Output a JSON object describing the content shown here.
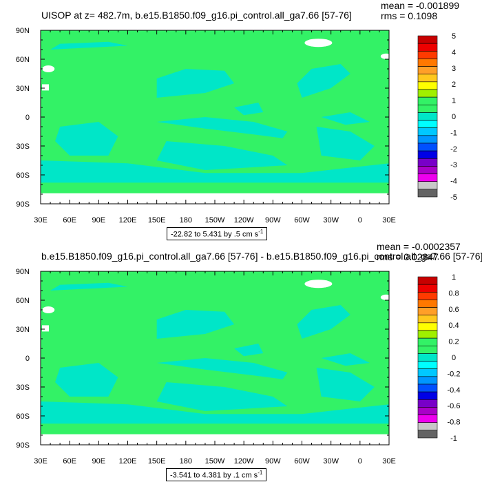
{
  "colors": {
    "land": "#ffffff",
    "ocean_pos": "#33f266",
    "ocean_neg": "#00e6c8",
    "axis": "#000000"
  },
  "chart_data": [
    {
      "type": "heatmap",
      "title": "UISOP at z= 482.7m, b.e15.B1850.f09_g16.pi_control.all_ga7.66 [57-76]",
      "stats": {
        "mean": "mean = -0.001899",
        "rms": "rms = 0.1098"
      },
      "x_ticks": [
        "30E",
        "60E",
        "90E",
        "120E",
        "150E",
        "180",
        "150W",
        "120W",
        "90W",
        "60W",
        "30W",
        "0",
        "30E"
      ],
      "y_ticks": [
        "90N",
        "60N",
        "30N",
        "0",
        "30S",
        "60S",
        "90S"
      ],
      "colorbar": {
        "labels": [
          "5",
          "4",
          "3",
          "2",
          "1",
          "0",
          "-1",
          "-2",
          "-3",
          "-4",
          "-5"
        ],
        "colors": [
          "#c80000",
          "#ee0000",
          "#ff3a00",
          "#ff7800",
          "#ff9f28",
          "#ffc81e",
          "#ffff00",
          "#a0f000",
          "#33f266",
          "#33f266",
          "#00e6c8",
          "#00ffff",
          "#00c8ff",
          "#0096ff",
          "#0050ff",
          "#0000e6",
          "#7800c8",
          "#aa00c8",
          "#ee00ee",
          "#c8c8c8",
          "#646464"
        ]
      },
      "range_label": "-22.82 to 5.431 by .5 cm s",
      "range_unit_sup": "-1"
    },
    {
      "type": "heatmap",
      "title": "b.e15.B1850.f09_g16.pi_control.all_ga7.66 [57-76] - b.e15.B1850.f09_g16.pi_control.all_ga7.66 [57-76]",
      "stats": {
        "mean": "mean = -0.0002357",
        "rms": "rms = 0.02847"
      },
      "x_ticks": [
        "30E",
        "60E",
        "90E",
        "120E",
        "150E",
        "180",
        "150W",
        "120W",
        "90W",
        "60W",
        "30W",
        "0",
        "30E"
      ],
      "y_ticks": [
        "90N",
        "60N",
        "30N",
        "0",
        "30S",
        "60S",
        "90S"
      ],
      "colorbar": {
        "labels": [
          "1",
          "0.8",
          "0.6",
          "0.4",
          "0.2",
          "0",
          "-0.2",
          "-0.4",
          "-0.6",
          "-0.8",
          "-1"
        ],
        "colors": [
          "#c80000",
          "#ee0000",
          "#ff3a00",
          "#ff7800",
          "#ff9f28",
          "#ffc81e",
          "#ffff00",
          "#a0f000",
          "#33f266",
          "#33f266",
          "#00e6c8",
          "#00ffff",
          "#00c8ff",
          "#0096ff",
          "#0050ff",
          "#0000e6",
          "#7800c8",
          "#aa00c8",
          "#ee00ee",
          "#c8c8c8",
          "#646464"
        ]
      },
      "range_label": "-3.541 to 4.381 by .1 cm s",
      "range_unit_sup": "-1"
    }
  ]
}
